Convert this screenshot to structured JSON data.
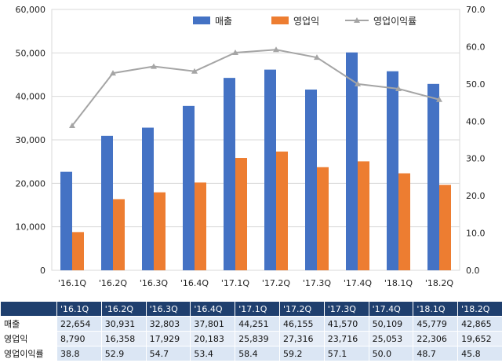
{
  "chart_data": {
    "type": "bar",
    "categories": [
      "'16.1Q",
      "'16.2Q",
      "'16.3Q",
      "'16.4Q",
      "'17.1Q",
      "'17.2Q",
      "'17.3Q",
      "'17.4Q",
      "'18.1Q",
      "'18.2Q"
    ],
    "series": [
      {
        "name": "매출",
        "type": "bar",
        "axis": "left",
        "color": "#4472c4",
        "values": [
          22654,
          30931,
          32803,
          37801,
          44251,
          46155,
          41570,
          50109,
          45779,
          42865
        ]
      },
      {
        "name": "영업익",
        "type": "bar",
        "axis": "left",
        "color": "#ed7d31",
        "values": [
          8790,
          16358,
          17929,
          20183,
          25839,
          27316,
          23716,
          25053,
          22306,
          19652
        ]
      },
      {
        "name": "영업이익률",
        "type": "line",
        "axis": "right",
        "color": "#a5a5a5",
        "values": [
          38.8,
          52.9,
          54.7,
          53.4,
          58.4,
          59.2,
          57.1,
          50.0,
          48.7,
          45.8
        ]
      }
    ],
    "ylim_left": [
      0,
      60000
    ],
    "yticks_left": [
      "0",
      "10,000",
      "20,000",
      "30,000",
      "40,000",
      "50,000",
      "60,000"
    ],
    "ylim_right": [
      0,
      70
    ],
    "yticks_right": [
      "0.0",
      "10.0",
      "20.0",
      "30.0",
      "40.0",
      "50.0",
      "60.0",
      "70.0"
    ],
    "grid": true,
    "legend_position": "top"
  },
  "table": {
    "headers": [
      "'16.1Q",
      "'16.2Q",
      "'16.3Q",
      "'16.4Q",
      "'17.1Q",
      "'17.2Q",
      "'17.3Q",
      "'17.4Q",
      "'18.1Q",
      "'18.2Q"
    ],
    "rows": [
      {
        "label": "매출",
        "cells": [
          "22,654",
          "30,931",
          "32,803",
          "37,801",
          "44,251",
          "46,155",
          "41,570",
          "50,109",
          "45,779",
          "42,865"
        ]
      },
      {
        "label": "영업익",
        "cells": [
          "8,790",
          "16,358",
          "17,929",
          "20,183",
          "25,839",
          "27,316",
          "23,716",
          "25,053",
          "22,306",
          "19,652"
        ]
      },
      {
        "label": "영업이익률",
        "cells": [
          "38.8",
          "52.9",
          "54.7",
          "53.4",
          "58.4",
          "59.2",
          "57.1",
          "50.0",
          "48.7",
          "45.8"
        ]
      }
    ]
  }
}
